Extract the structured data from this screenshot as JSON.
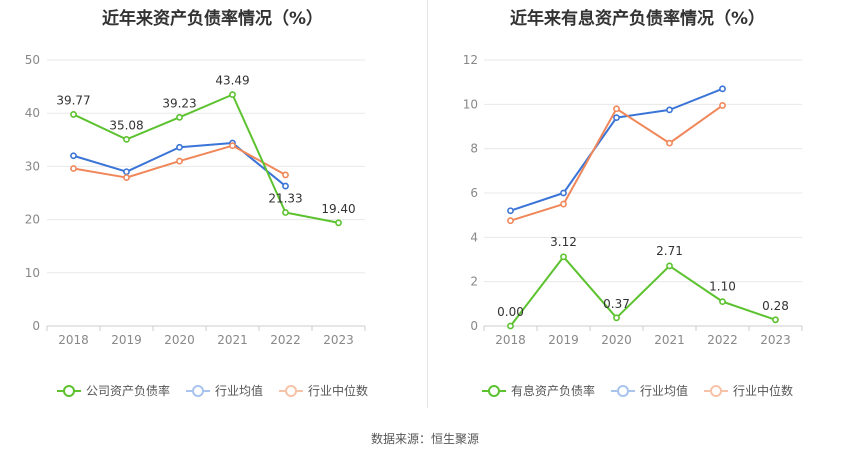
{
  "source": "数据来源：恒生聚源",
  "chart_data": [
    {
      "type": "line",
      "title": "近年来资产负债率情况（%）",
      "categories": [
        "2018",
        "2019",
        "2020",
        "2021",
        "2022",
        "2023"
      ],
      "ylim": [
        0,
        50
      ],
      "yticks": [
        0,
        10,
        20,
        30,
        40,
        50
      ],
      "grid": true,
      "legend_position": "bottom",
      "series": [
        {
          "name": "公司资产负债率",
          "color": "#5cc22f",
          "values": [
            39.77,
            35.08,
            39.23,
            43.49,
            21.33,
            19.4
          ],
          "labels": [
            "39.77",
            "35.08",
            "39.23",
            "43.49",
            "21.33",
            "19.40"
          ]
        },
        {
          "name": "行业均值",
          "color": "#3a74d6",
          "values": [
            32.0,
            29.0,
            33.6,
            34.4,
            26.3,
            null
          ]
        },
        {
          "name": "行业中位数",
          "color": "#f0875a",
          "values": [
            29.6,
            27.9,
            31.0,
            33.9,
            28.4,
            null
          ]
        }
      ]
    },
    {
      "type": "line",
      "title": "近年来有息资产负债率情况（%）",
      "categories": [
        "2018",
        "2019",
        "2020",
        "2021",
        "2022",
        "2023"
      ],
      "ylim": [
        0,
        12
      ],
      "yticks": [
        0,
        2,
        4,
        6,
        8,
        10,
        12
      ],
      "grid": true,
      "legend_position": "bottom",
      "series": [
        {
          "name": "有息资产负债率",
          "color": "#5cc22f",
          "values": [
            0.0,
            3.12,
            0.37,
            2.71,
            1.1,
            0.28
          ],
          "labels": [
            "0.00",
            "3.12",
            "0.37",
            "2.71",
            "1.10",
            "0.28"
          ]
        },
        {
          "name": "行业均值",
          "color": "#3a74d6",
          "values": [
            5.2,
            6.0,
            9.4,
            9.75,
            10.7,
            null
          ]
        },
        {
          "name": "行业中位数",
          "color": "#f0875a",
          "values": [
            4.75,
            5.5,
            9.8,
            8.25,
            9.95,
            null
          ]
        }
      ]
    }
  ]
}
